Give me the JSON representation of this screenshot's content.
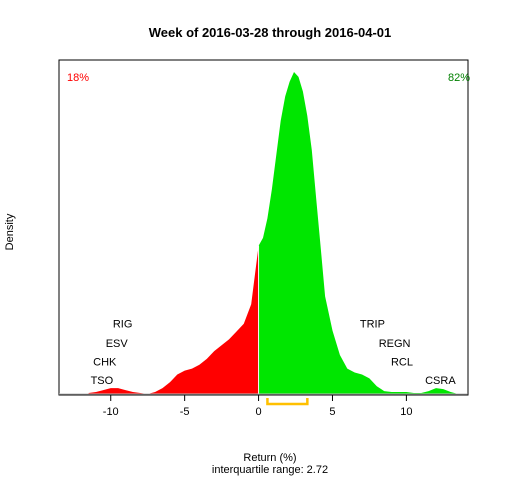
{
  "chart_data": {
    "type": "area",
    "title": "Week of 2016-03-28 through 2016-04-01",
    "xlabel": "Return (%)",
    "ylabel": "Density",
    "subtitle": "interquartile range: 2.72",
    "xlim": [
      -13.5,
      14.1
    ],
    "xticks": [
      -10,
      -5,
      0,
      5,
      10
    ],
    "grid": false,
    "negative_share_label": "18%",
    "positive_share_label": "82%",
    "colors": {
      "negative": "#ff0000",
      "positive": "#00e600",
      "zero_line": "#ffffff",
      "iqr": "#ffc000",
      "axis": "#000000",
      "frame": "#000000",
      "baseline": "#bebebe"
    },
    "iqr": {
      "q1": 0.6,
      "q3": 3.3
    },
    "density": {
      "x": [
        -11.5,
        -11.0,
        -10.5,
        -10.0,
        -9.5,
        -9.0,
        -8.5,
        -8.0,
        -7.5,
        -7.0,
        -6.5,
        -6.0,
        -5.5,
        -5.0,
        -4.5,
        -4.0,
        -3.5,
        -3.0,
        -2.5,
        -2.0,
        -1.5,
        -1.0,
        -0.5,
        0.0,
        0.3,
        0.6,
        0.9,
        1.2,
        1.5,
        1.8,
        2.1,
        2.4,
        2.7,
        3.0,
        3.3,
        3.6,
        3.9,
        4.2,
        4.5,
        5.0,
        5.5,
        6.0,
        6.5,
        7.0,
        7.5,
        8.0,
        8.5,
        9.0,
        9.5,
        10.0,
        10.5,
        11.0,
        11.5,
        12.0,
        12.5,
        13.0,
        13.5
      ],
      "y": [
        0.001,
        0.002,
        0.004,
        0.006,
        0.006,
        0.004,
        0.002,
        0.001,
        0.0,
        0.002,
        0.006,
        0.012,
        0.02,
        0.024,
        0.026,
        0.03,
        0.036,
        0.044,
        0.05,
        0.056,
        0.064,
        0.072,
        0.092,
        0.152,
        0.16,
        0.18,
        0.21,
        0.245,
        0.28,
        0.305,
        0.32,
        0.33,
        0.325,
        0.31,
        0.285,
        0.25,
        0.2,
        0.15,
        0.1,
        0.065,
        0.04,
        0.026,
        0.022,
        0.02,
        0.016,
        0.008,
        0.003,
        0.002,
        0.002,
        0.002,
        0.001,
        0.001,
        0.003,
        0.006,
        0.005,
        0.002,
        0.0
      ]
    },
    "annotations": [
      {
        "text": "RIG",
        "x": -9.2,
        "y": 0.068,
        "side": "left"
      },
      {
        "text": "ESV",
        "x": -9.6,
        "y": 0.048,
        "side": "left"
      },
      {
        "text": "CHK",
        "x": -10.4,
        "y": 0.029,
        "side": "left"
      },
      {
        "text": "TSO",
        "x": -10.6,
        "y": 0.01,
        "side": "left"
      },
      {
        "text": "TRIP",
        "x": 7.7,
        "y": 0.068,
        "side": "right"
      },
      {
        "text": "REGN",
        "x": 9.2,
        "y": 0.048,
        "side": "right"
      },
      {
        "text": "RCL",
        "x": 9.7,
        "y": 0.029,
        "side": "right"
      },
      {
        "text": "CSRA",
        "x": 12.3,
        "y": 0.01,
        "side": "right"
      }
    ]
  }
}
